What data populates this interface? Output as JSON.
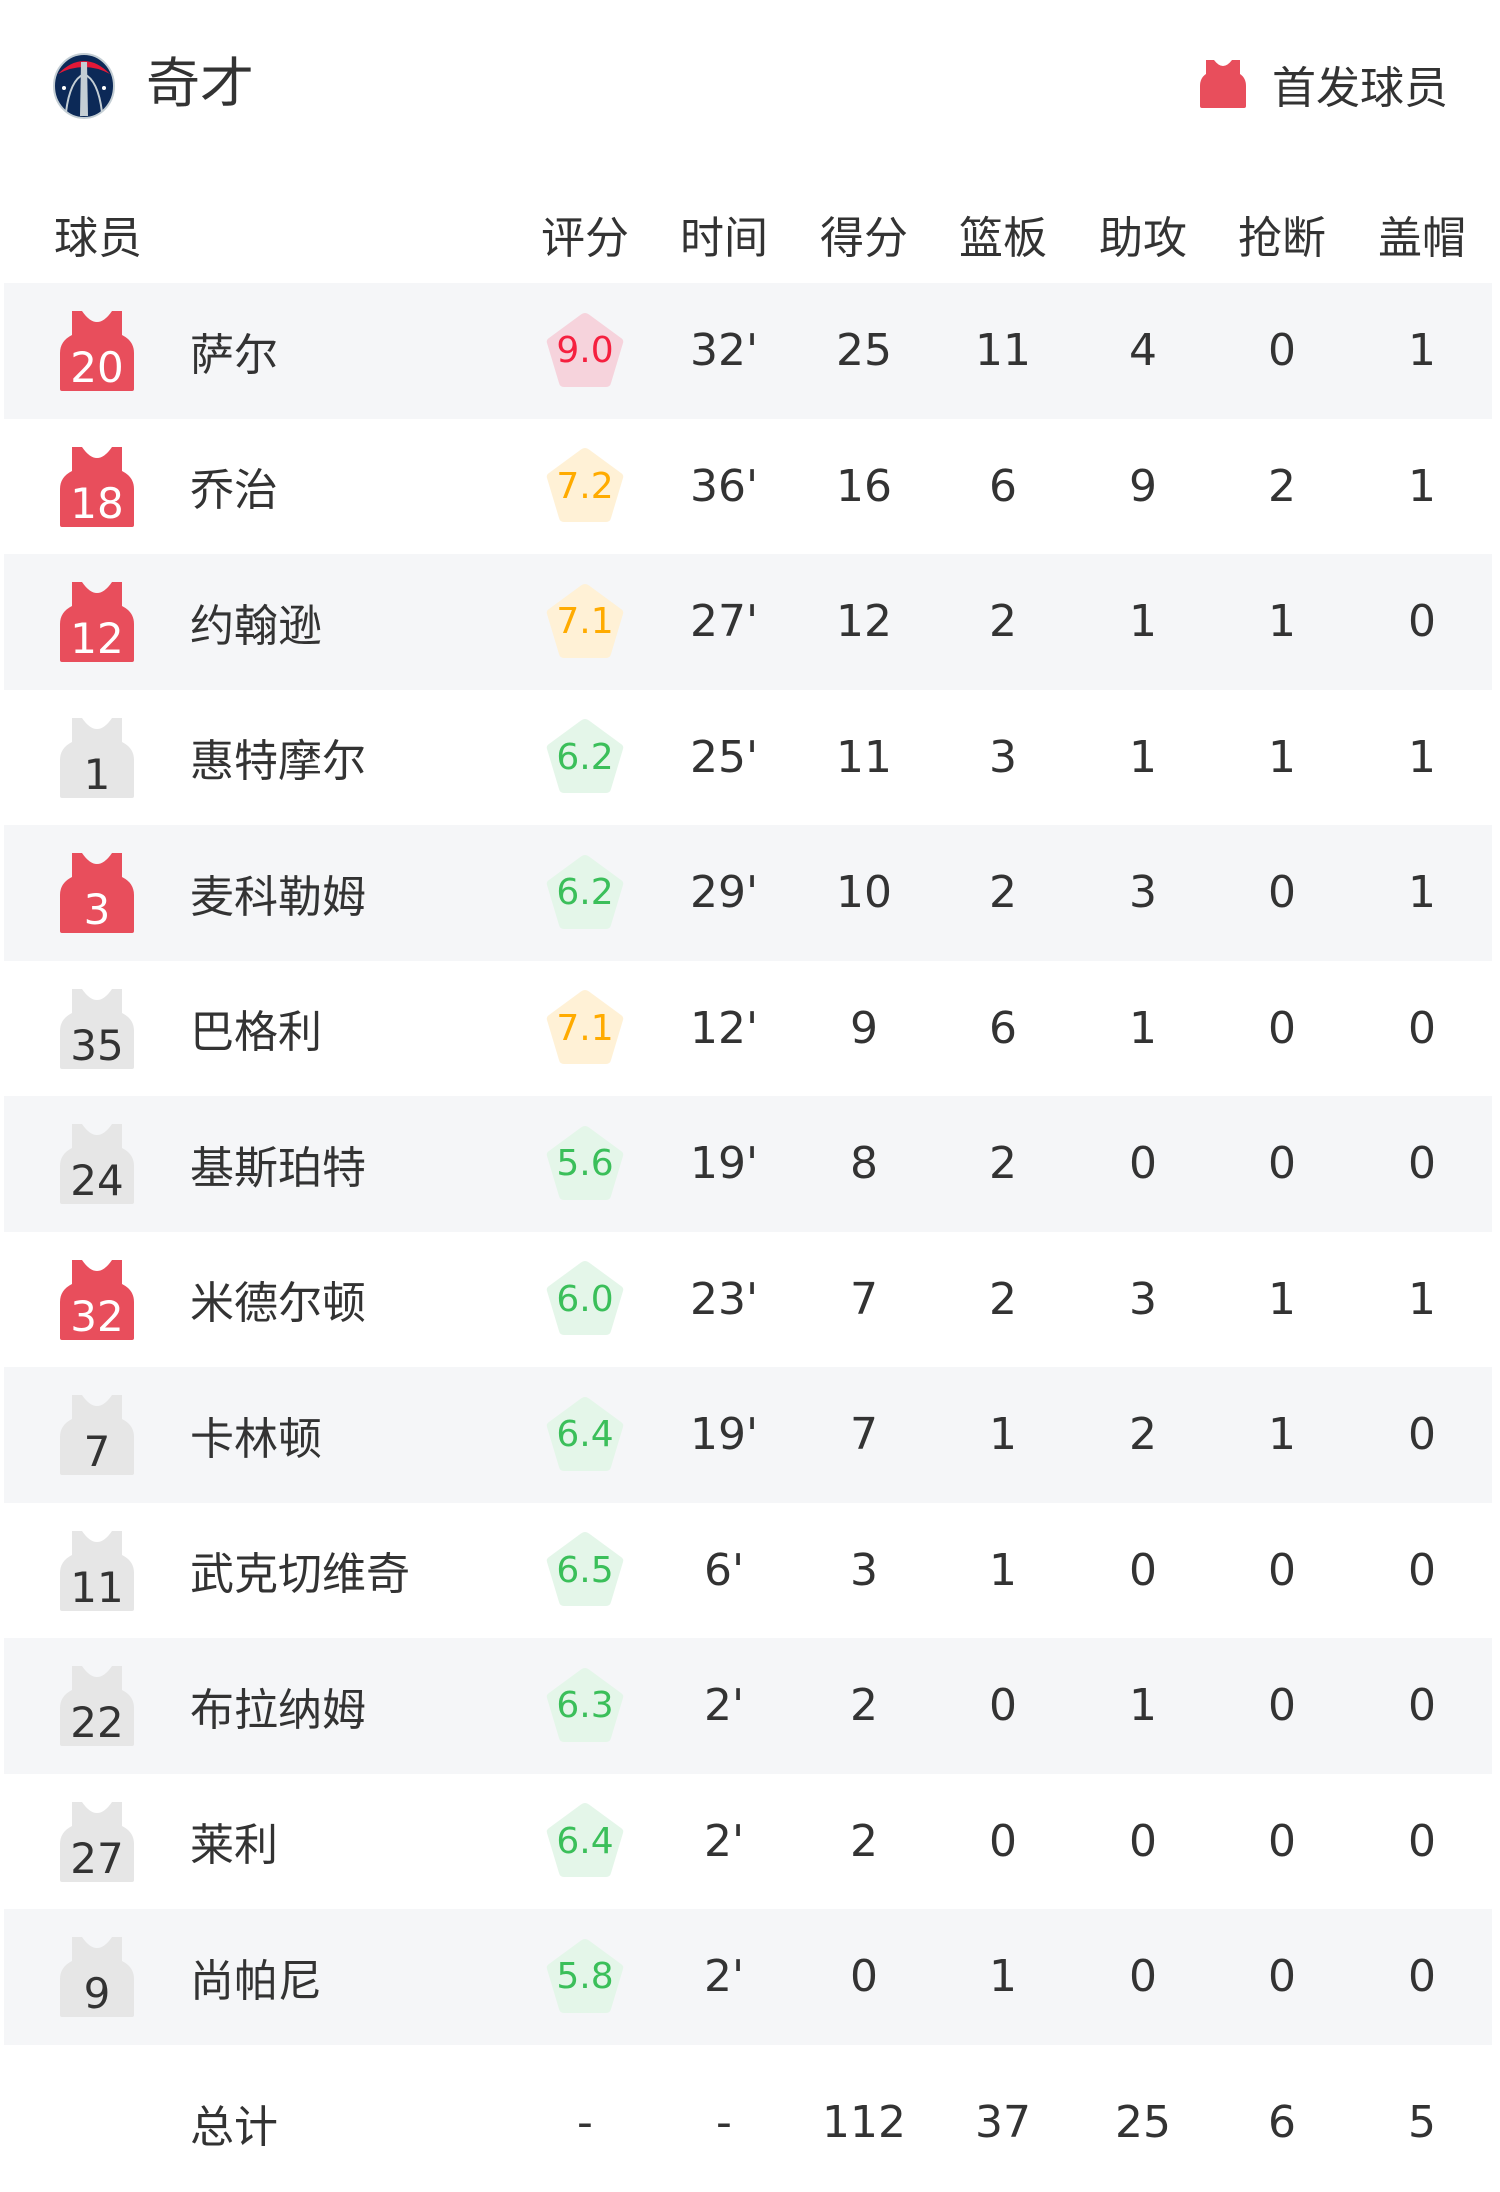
{
  "header": {
    "team_name": "奇才",
    "team_logo": "washington-wizards-logo",
    "legend_label": "首发球员",
    "legend_icon": "jersey-icon"
  },
  "columns": [
    "球员",
    "评分",
    "时间",
    "得分",
    "篮板",
    "助攻",
    "抢断",
    "盖帽"
  ],
  "colors": {
    "starter_jersey": "#e84e5c",
    "bench_jersey": "#e6e6e6",
    "rating_red": "#f5203f",
    "rating_red_bg": "#f6d3dc",
    "rating_orange": "#ffab00",
    "rating_orange_bg": "#fff1d6",
    "rating_green": "#3bbf5a",
    "rating_green_bg": "#e4f6e9",
    "row_alt_bg": "#f5f6f8"
  },
  "players": [
    {
      "number": "20",
      "name": "萨尔",
      "starter": true,
      "rating": "9.0",
      "tier": "red",
      "min": "32'",
      "pts": "25",
      "reb": "11",
      "ast": "4",
      "stl": "0",
      "blk": "1"
    },
    {
      "number": "18",
      "name": "乔治",
      "starter": true,
      "rating": "7.2",
      "tier": "orange",
      "min": "36'",
      "pts": "16",
      "reb": "6",
      "ast": "9",
      "stl": "2",
      "blk": "1"
    },
    {
      "number": "12",
      "name": "约翰逊",
      "starter": true,
      "rating": "7.1",
      "tier": "orange",
      "min": "27'",
      "pts": "12",
      "reb": "2",
      "ast": "1",
      "stl": "1",
      "blk": "0"
    },
    {
      "number": "1",
      "name": "惠特摩尔",
      "starter": false,
      "rating": "6.2",
      "tier": "green",
      "min": "25'",
      "pts": "11",
      "reb": "3",
      "ast": "1",
      "stl": "1",
      "blk": "1"
    },
    {
      "number": "3",
      "name": "麦科勒姆",
      "starter": true,
      "rating": "6.2",
      "tier": "green",
      "min": "29'",
      "pts": "10",
      "reb": "2",
      "ast": "3",
      "stl": "0",
      "blk": "1"
    },
    {
      "number": "35",
      "name": "巴格利",
      "starter": false,
      "rating": "7.1",
      "tier": "orange",
      "min": "12'",
      "pts": "9",
      "reb": "6",
      "ast": "1",
      "stl": "0",
      "blk": "0"
    },
    {
      "number": "24",
      "name": "基斯珀特",
      "starter": false,
      "rating": "5.6",
      "tier": "green",
      "min": "19'",
      "pts": "8",
      "reb": "2",
      "ast": "0",
      "stl": "0",
      "blk": "0"
    },
    {
      "number": "32",
      "name": "米德尔顿",
      "starter": true,
      "rating": "6.0",
      "tier": "green",
      "min": "23'",
      "pts": "7",
      "reb": "2",
      "ast": "3",
      "stl": "1",
      "blk": "1"
    },
    {
      "number": "7",
      "name": "卡林顿",
      "starter": false,
      "rating": "6.4",
      "tier": "green",
      "min": "19'",
      "pts": "7",
      "reb": "1",
      "ast": "2",
      "stl": "1",
      "blk": "0"
    },
    {
      "number": "11",
      "name": "武克切维奇",
      "starter": false,
      "rating": "6.5",
      "tier": "green",
      "min": "6'",
      "pts": "3",
      "reb": "1",
      "ast": "0",
      "stl": "0",
      "blk": "0"
    },
    {
      "number": "22",
      "name": "布拉纳姆",
      "starter": false,
      "rating": "6.3",
      "tier": "green",
      "min": "2'",
      "pts": "2",
      "reb": "0",
      "ast": "1",
      "stl": "0",
      "blk": "0"
    },
    {
      "number": "27",
      "name": "莱利",
      "starter": false,
      "rating": "6.4",
      "tier": "green",
      "min": "2'",
      "pts": "2",
      "reb": "0",
      "ast": "0",
      "stl": "0",
      "blk": "0"
    },
    {
      "number": "9",
      "name": "尚帕尼",
      "starter": false,
      "rating": "5.8",
      "tier": "green",
      "min": "2'",
      "pts": "0",
      "reb": "1",
      "ast": "0",
      "stl": "0",
      "blk": "0"
    }
  ],
  "totals": {
    "label": "总计",
    "rating": "-",
    "min": "-",
    "pts": "112",
    "reb": "37",
    "ast": "25",
    "stl": "6",
    "blk": "5"
  }
}
